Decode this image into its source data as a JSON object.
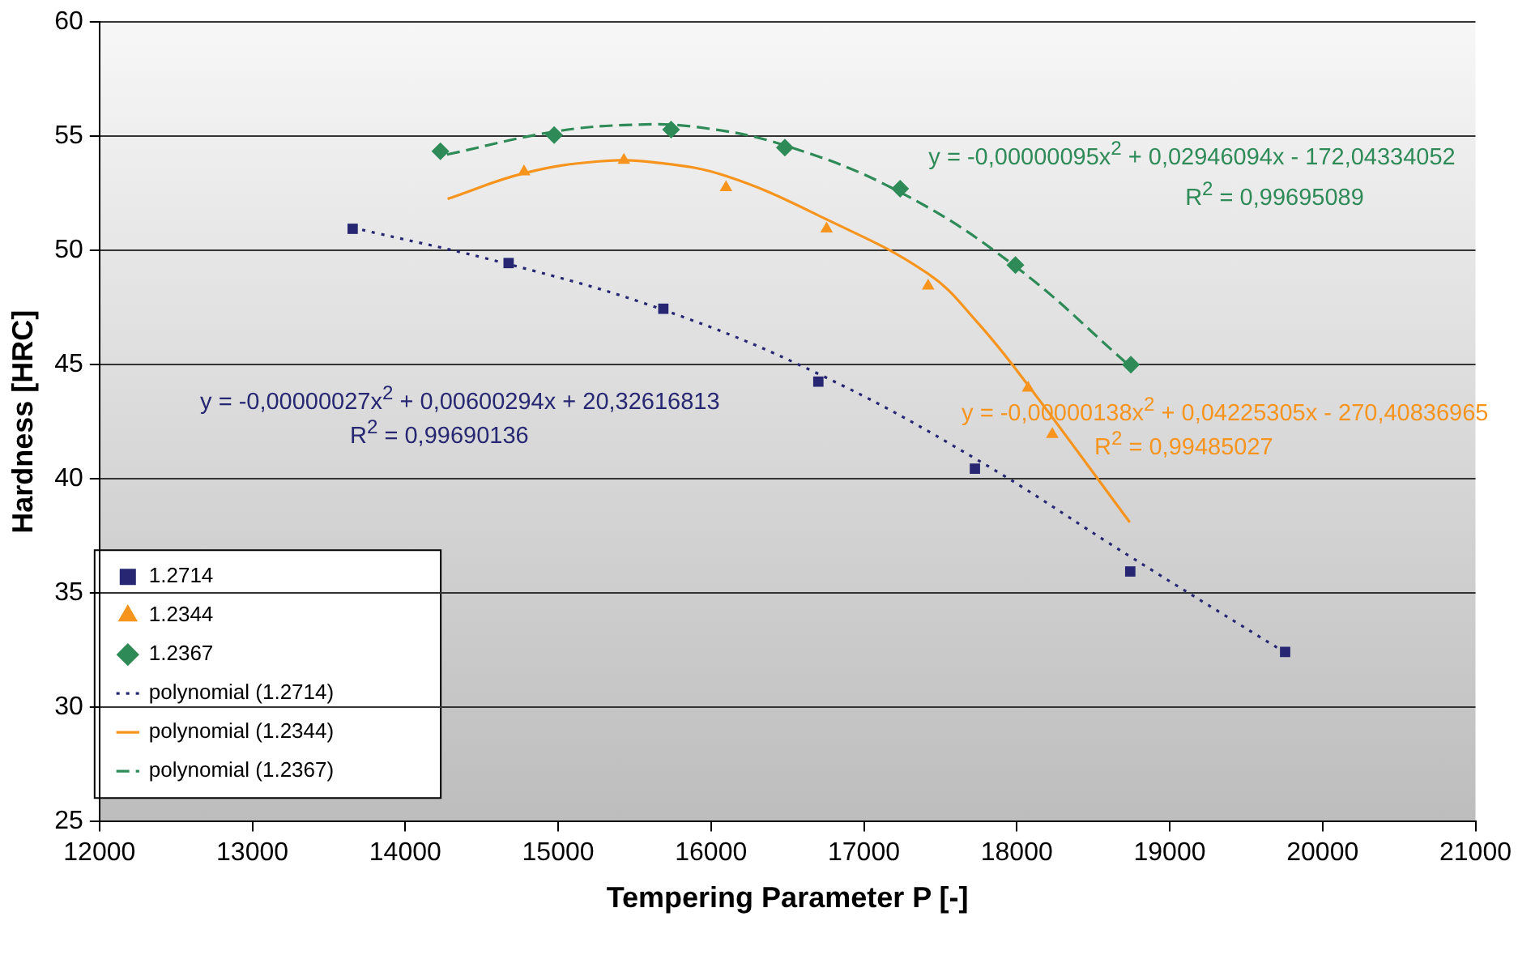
{
  "chart_data": {
    "type": "scatter",
    "xlabel": "Tempering Parameter P [-]",
    "ylabel": "Hardness [HRC]",
    "xlim": [
      12000,
      21000
    ],
    "xticks": [
      12000,
      13000,
      14000,
      15000,
      16000,
      17000,
      18000,
      19000,
      20000,
      21000
    ],
    "ylim": [
      25,
      60
    ],
    "yticks": [
      25,
      30,
      35,
      40,
      45,
      50,
      55,
      60
    ],
    "grid": "y",
    "legend": "bottom left",
    "series": [
      {
        "name": "1.2714",
        "marker": "square",
        "color": "#262673",
        "x": [
          13656,
          14676,
          15688,
          16702,
          17726,
          18742,
          19755
        ],
        "values": [
          50.95,
          49.45,
          47.45,
          44.26,
          40.45,
          35.95,
          32.43
        ]
      },
      {
        "name": "1.2344",
        "marker": "triangle",
        "color": "#f7941d",
        "x": [
          14777,
          15430,
          16098,
          16756,
          17420,
          18074,
          18232
        ],
        "values": [
          53.45,
          53.95,
          52.76,
          50.95,
          48.45,
          43.98,
          41.95
        ]
      },
      {
        "name": "1.2367",
        "marker": "diamond",
        "color": "#2e8b57",
        "x": [
          14230,
          14974,
          15739,
          16483,
          17237,
          17991,
          18746
        ],
        "values": [
          54.34,
          55.05,
          55.29,
          54.5,
          52.7,
          49.36,
          45.0
        ]
      },
      {
        "name": "polynomial (1.2714)",
        "type": "line",
        "marker": "none",
        "line_style": "dotted",
        "color": "#262673",
        "x": [
          13656,
          14676,
          15688,
          16702,
          17726,
          18742,
          19755
        ],
        "values": [
          51.0,
          49.4,
          47.4,
          44.6,
          40.9,
          36.6,
          32.4
        ]
      },
      {
        "name": "polynomial (1.2344)",
        "type": "line",
        "marker": "none",
        "line_style": "solid",
        "color": "#f7941d",
        "x": [
          14277,
          14777,
          15265,
          15624,
          16098,
          16756,
          17420,
          17744,
          18074,
          18739
        ],
        "values": [
          52.26,
          53.38,
          53.9,
          53.86,
          53.26,
          51.36,
          48.98,
          46.84,
          44.1,
          38.1
        ]
      },
      {
        "name": "polynomial (1.2367)",
        "type": "line",
        "marker": "none",
        "line_style": "dashed",
        "color": "#2e8b57",
        "x": [
          14273,
          14974,
          15480,
          15912,
          16483,
          17237,
          17991,
          18746
        ],
        "values": [
          54.2,
          55.2,
          55.5,
          55.4,
          54.6,
          52.55,
          49.3,
          44.9
        ]
      }
    ],
    "annotations": [
      "y = -0,00000027x$^{2}$ + 0,00600294x + 20,32616813",
      "R$^{2}$ = 0,99690136",
      "y = -0,00000138x$^{2}$ + 0,04225305x - 270,40836965",
      "R$^{2}$ = 0,99485027",
      "y = -0,00000095x$^{2}$ + 0,02946094x - 172,04334052",
      "R$^{2}$ = 0,99695089"
    ]
  }
}
